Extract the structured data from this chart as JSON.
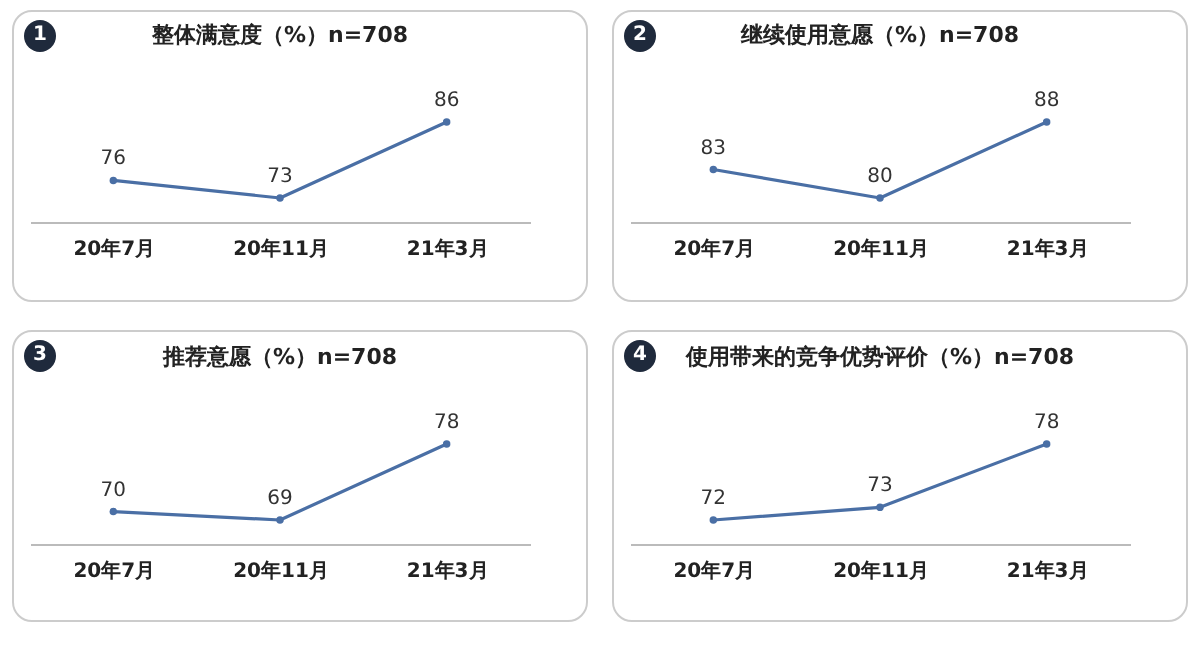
{
  "chart_data": [
    {
      "type": "line",
      "title": "整体满意度（%）n=708",
      "annotations": [
        "1"
      ],
      "categories": [
        "20年7月",
        "20年11月",
        "21年3月"
      ],
      "values": [
        76,
        73,
        86
      ],
      "color": "#4a6fa5",
      "data_labels": true,
      "marker": "circle",
      "tick_labels": "x",
      "grid": false
    },
    {
      "type": "line",
      "title": "继续使用意愿（%）n=708",
      "annotations": [
        "2"
      ],
      "categories": [
        "20年7月",
        "20年11月",
        "21年3月"
      ],
      "values": [
        83,
        80,
        88
      ],
      "color": "#4a6fa5",
      "data_labels": true,
      "marker": "circle",
      "tick_labels": "x",
      "grid": false
    },
    {
      "type": "line",
      "title": "推荐意愿（%）n=708",
      "annotations": [
        "3"
      ],
      "categories": [
        "20年7月",
        "20年11月",
        "21年3月"
      ],
      "values": [
        70,
        69,
        78
      ],
      "color": "#4a6fa5",
      "data_labels": true,
      "marker": "circle",
      "tick_labels": "x",
      "grid": false
    },
    {
      "type": "line",
      "title": "使用带来的竞争优势评价（%）n=708",
      "annotations": [
        "4"
      ],
      "categories": [
        "20年7月",
        "20年11月",
        "21年3月"
      ],
      "values": [
        72,
        73,
        78
      ],
      "color": "#4a6fa5",
      "data_labels": true,
      "marker": "circle",
      "tick_labels": "x",
      "grid": false
    }
  ]
}
